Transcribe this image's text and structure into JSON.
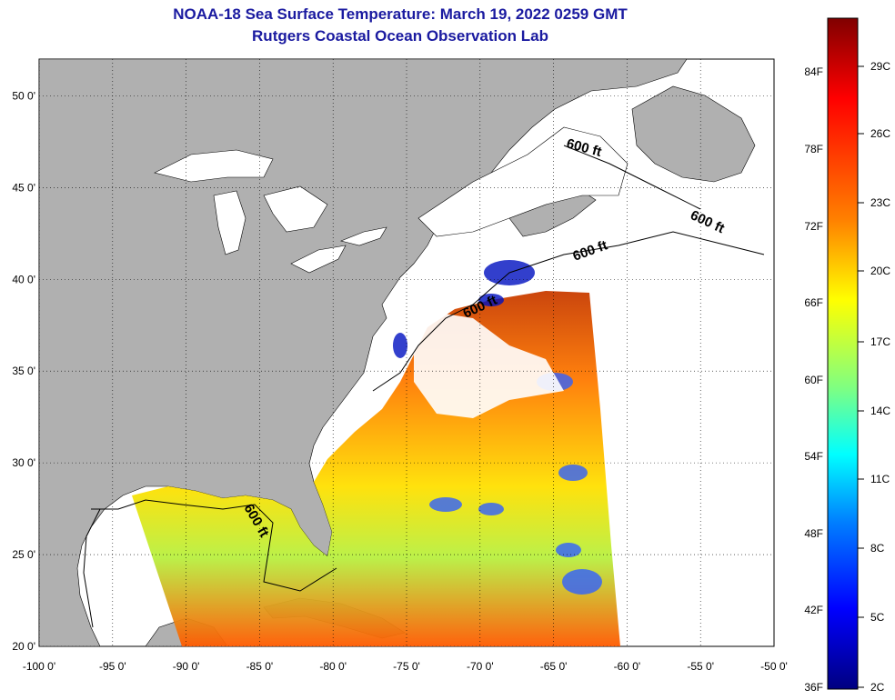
{
  "header": {
    "title": "NOAA-18 Sea Surface Temperature:  March 19, 2022 0259 GMT",
    "subtitle": "Rutgers Coastal Ocean Observation Lab"
  },
  "map": {
    "lon_range": [
      -100,
      -50
    ],
    "lat_range": [
      20,
      52
    ],
    "lon_ticks": [
      "-100 0'",
      "-95 0'",
      "-90 0'",
      "-85 0'",
      "-80 0'",
      "-75 0'",
      "-70 0'",
      "-65 0'",
      "-60 0'",
      "-55 0'",
      "-50 0'"
    ],
    "lat_ticks": [
      "20 0'",
      "25 0'",
      "30 0'",
      "35 0'",
      "40 0'",
      "45 0'",
      "50 0'"
    ],
    "contour_label": "600 ft",
    "land_color": "#b0b0b0",
    "grid": "dotted"
  },
  "colorbar": {
    "fahrenheit_labels": [
      "84F",
      "78F",
      "72F",
      "66F",
      "60F",
      "54F",
      "48F",
      "42F",
      "36F"
    ],
    "celsius_labels": [
      "29C",
      "26C",
      "23C",
      "20C",
      "17C",
      "14C",
      "11C",
      "8C",
      "5C",
      "2C"
    ],
    "colors": [
      "#800000",
      "#ff0000",
      "#ff8000",
      "#ffff00",
      "#80ff80",
      "#00ffff",
      "#0080ff",
      "#0000ff",
      "#000080"
    ]
  }
}
